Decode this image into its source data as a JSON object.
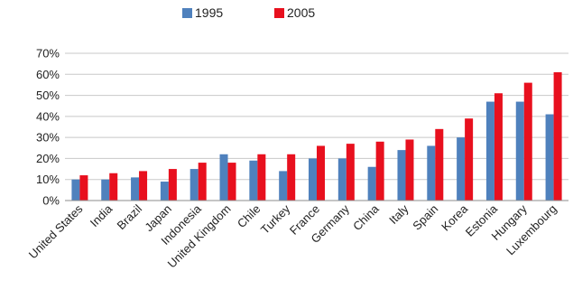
{
  "chart_data": {
    "type": "bar",
    "categories": [
      "United States",
      "India",
      "Brazil",
      "Japan",
      "Indonesia",
      "United Kingdom",
      "Chile",
      "Turkey",
      "France",
      "Germany",
      "China",
      "Italy",
      "Spain",
      "Korea",
      "Estonia",
      "Hungary",
      "Luxembourg"
    ],
    "series": [
      {
        "name": "1995",
        "color": "#4F81BD",
        "values": [
          0.1,
          0.1,
          0.11,
          0.09,
          0.15,
          0.22,
          0.19,
          0.14,
          0.2,
          0.2,
          0.16,
          0.24,
          0.26,
          0.3,
          0.47,
          0.47,
          0.41
        ]
      },
      {
        "name": "2005",
        "color": "#E8101E",
        "values": [
          0.12,
          0.13,
          0.14,
          0.15,
          0.18,
          0.18,
          0.22,
          0.22,
          0.26,
          0.27,
          0.28,
          0.29,
          0.34,
          0.39,
          0.51,
          0.56,
          0.61
        ]
      }
    ],
    "ylim": [
      0,
      0.7
    ],
    "yticks": [
      "0%",
      "10%",
      "20%",
      "30%",
      "40%",
      "50%",
      "60%",
      "70%"
    ],
    "grid": true,
    "legend": "top-center",
    "title": "",
    "xlabel": "",
    "ylabel": ""
  }
}
